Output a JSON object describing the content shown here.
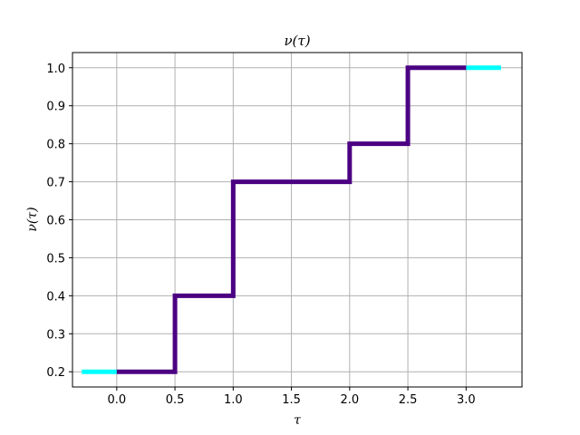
{
  "chart_data": {
    "type": "line",
    "title": "ν(τ)",
    "xlabel": "τ",
    "ylabel": "ν(τ)",
    "xlim": [
      -0.38,
      3.48
    ],
    "ylim": [
      0.16,
      1.04
    ],
    "xticks": [
      0.0,
      0.5,
      1.0,
      1.5,
      2.0,
      2.5,
      3.0
    ],
    "xtick_labels": [
      "0.0",
      "0.5",
      "1.0",
      "1.5",
      "2.0",
      "2.5",
      "3.0"
    ],
    "yticks": [
      0.2,
      0.3,
      0.4,
      0.5,
      0.6,
      0.7,
      0.8,
      0.9,
      1.0
    ],
    "ytick_labels": [
      "0.2",
      "0.3",
      "0.4",
      "0.5",
      "0.6",
      "0.7",
      "0.8",
      "0.9",
      "1.0"
    ],
    "grid": true,
    "series": [
      {
        "color": "#00ffff",
        "style": "extension",
        "x": [
          -0.3,
          0.0
        ],
        "y": [
          0.2,
          0.2
        ]
      },
      {
        "color": "#00ffff",
        "style": "extension",
        "x": [
          3.0,
          3.3
        ],
        "y": [
          1.0,
          1.0
        ]
      },
      {
        "color": "#4b0082",
        "style": "step",
        "x": [
          0.0,
          0.5,
          0.5,
          1.0,
          1.0,
          2.0,
          2.0,
          2.5,
          2.5,
          3.0
        ],
        "y": [
          0.2,
          0.2,
          0.4,
          0.4,
          0.7,
          0.7,
          0.8,
          0.8,
          1.0,
          1.0
        ]
      }
    ]
  }
}
